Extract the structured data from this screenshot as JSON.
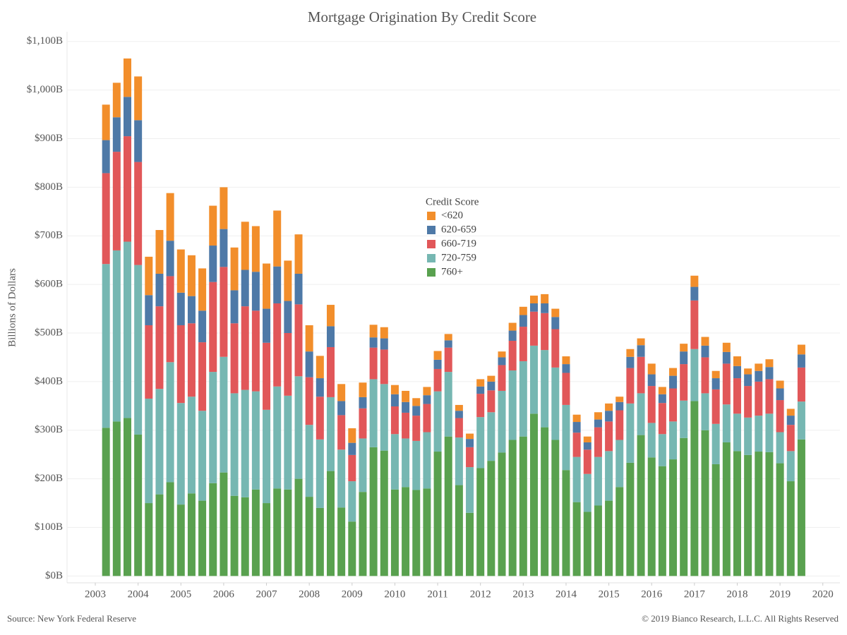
{
  "chart_data": {
    "type": "bar",
    "stacked": true,
    "title": "Mortgage Origination By Credit Score",
    "ylabel": "Billions of Dollars",
    "source": "Source: New York Federal Reserve",
    "copyright": "© 2019 Bianco Research, L.L.C. All Rights Reserved",
    "legend_title": "Credit Score",
    "legend_position": "center",
    "grid": true,
    "xlim": [
      2002.34,
      2020.4
    ],
    "xticks": [
      2003,
      2004,
      2005,
      2006,
      2007,
      2008,
      2009,
      2010,
      2011,
      2012,
      2013,
      2014,
      2015,
      2016,
      2017,
      2018,
      2019,
      2020
    ],
    "ylim": [
      -14,
      1120
    ],
    "yticks": [
      {
        "value": 0,
        "label": "$0B"
      },
      {
        "value": 100,
        "label": "$100B"
      },
      {
        "value": 200,
        "label": "$200B"
      },
      {
        "value": 300,
        "label": "$300B"
      },
      {
        "value": 400,
        "label": "$400B"
      },
      {
        "value": 500,
        "label": "$500B"
      },
      {
        "value": 600,
        "label": "$600B"
      },
      {
        "value": 700,
        "label": "$700B"
      },
      {
        "value": 800,
        "label": "$800B"
      },
      {
        "value": 900,
        "label": "$900B"
      },
      {
        "value": 1000,
        "label": "$1,000B"
      },
      {
        "value": 1100,
        "label": "$1,100B"
      }
    ],
    "x": [
      2003.25,
      2003.5,
      2003.75,
      2004,
      2004.25,
      2004.5,
      2004.75,
      2005,
      2005.25,
      2005.5,
      2005.75,
      2006,
      2006.25,
      2006.5,
      2006.75,
      2007,
      2007.25,
      2007.5,
      2007.75,
      2008,
      2008.25,
      2008.5,
      2008.75,
      2009,
      2009.25,
      2009.5,
      2009.75,
      2010,
      2010.25,
      2010.5,
      2010.75,
      2011,
      2011.25,
      2011.5,
      2011.75,
      2012,
      2012.25,
      2012.5,
      2012.75,
      2013,
      2013.25,
      2013.5,
      2013.75,
      2014,
      2014.25,
      2014.5,
      2014.75,
      2015,
      2015.25,
      2015.5,
      2015.75,
      2016,
      2016.25,
      2016.5,
      2016.75,
      2017,
      2017.25,
      2017.5,
      2017.75,
      2018,
      2018.25,
      2018.5,
      2018.75,
      2019,
      2019.25,
      2019.5
    ],
    "series": [
      {
        "name": "<620",
        "color": "#f28e2b",
        "values": [
          73,
          71,
          79,
          90,
          79,
          90,
          98,
          89,
          84,
          87,
          82,
          86,
          88,
          99,
          94,
          93,
          115,
          83,
          81,
          54,
          46,
          44,
          35,
          30,
          30,
          26,
          23,
          19,
          23,
          16,
          17,
          18,
          13,
          12,
          11,
          15,
          12,
          12,
          16,
          17,
          16,
          19,
          17,
          16,
          15,
          12,
          15,
          15,
          11,
          16,
          14,
          22,
          15,
          16,
          16,
          23,
          18,
          15,
          19,
          20,
          12,
          15,
          16,
          16,
          14,
          20
        ]
      },
      {
        "name": "620-659",
        "color": "#4e79a7",
        "values": [
          68,
          71,
          81,
          86,
          62,
          67,
          73,
          67,
          56,
          65,
          75,
          78,
          68,
          75,
          80,
          70,
          76,
          66,
          63,
          53,
          38,
          43,
          29,
          25,
          23,
          21,
          23,
          25,
          22,
          20,
          18,
          19,
          15,
          15,
          17,
          15,
          18,
          16,
          21,
          24,
          17,
          20,
          25,
          18,
          22,
          15,
          16,
          22,
          17,
          23,
          24,
          24,
          18,
          26,
          26,
          28,
          24,
          23,
          24,
          25,
          24,
          22,
          25,
          24,
          19,
          27
        ]
      },
      {
        "name": "660-719",
        "color": "#e15759",
        "values": [
          187,
          203,
          217,
          212,
          151,
          170,
          177,
          160,
          151,
          141,
          185,
          185,
          144,
          172,
          166,
          138,
          171,
          129,
          148,
          98,
          88,
          103,
          71,
          54,
          62,
          65,
          71,
          57,
          53,
          52,
          58,
          46,
          50,
          40,
          41,
          48,
          45,
          53,
          61,
          71,
          70,
          76,
          79,
          66,
          50,
          50,
          61,
          61,
          61,
          73,
          75,
          76,
          64,
          68,
          75,
          100,
          74,
          71,
          84,
          73,
          65,
          70,
          71,
          66,
          54,
          70
        ]
      },
      {
        "name": "720-759",
        "color": "#76b7b2",
        "values": [
          337,
          352,
          363,
          349,
          215,
          217,
          247,
          209,
          199,
          185,
          229,
          238,
          211,
          221,
          202,
          192,
          210,
          193,
          211,
          148,
          141,
          152,
          119,
          83,
          110,
          140,
          137,
          114,
          100,
          101,
          116,
          124,
          133,
          98,
          94,
          105,
          100,
          127,
          143,
          155,
          140,
          159,
          149,
          134,
          93,
          78,
          100,
          102,
          97,
          122,
          86,
          71,
          66,
          78,
          77,
          107,
          76,
          83,
          78,
          77,
          77,
          74,
          79,
          64,
          62,
          78
        ]
      },
      {
        "name": "760+",
        "color": "#59a14f",
        "values": [
          305,
          318,
          325,
          291,
          150,
          168,
          193,
          147,
          170,
          155,
          191,
          213,
          165,
          162,
          178,
          150,
          180,
          178,
          200,
          163,
          140,
          216,
          141,
          112,
          173,
          265,
          258,
          178,
          183,
          177,
          180,
          256,
          287,
          187,
          130,
          222,
          237,
          254,
          280,
          287,
          334,
          306,
          280,
          218,
          152,
          132,
          145,
          155,
          183,
          233,
          290,
          244,
          226,
          240,
          284,
          360,
          300,
          230,
          275,
          257,
          249,
          256,
          255,
          232,
          195,
          281
        ]
      }
    ]
  }
}
